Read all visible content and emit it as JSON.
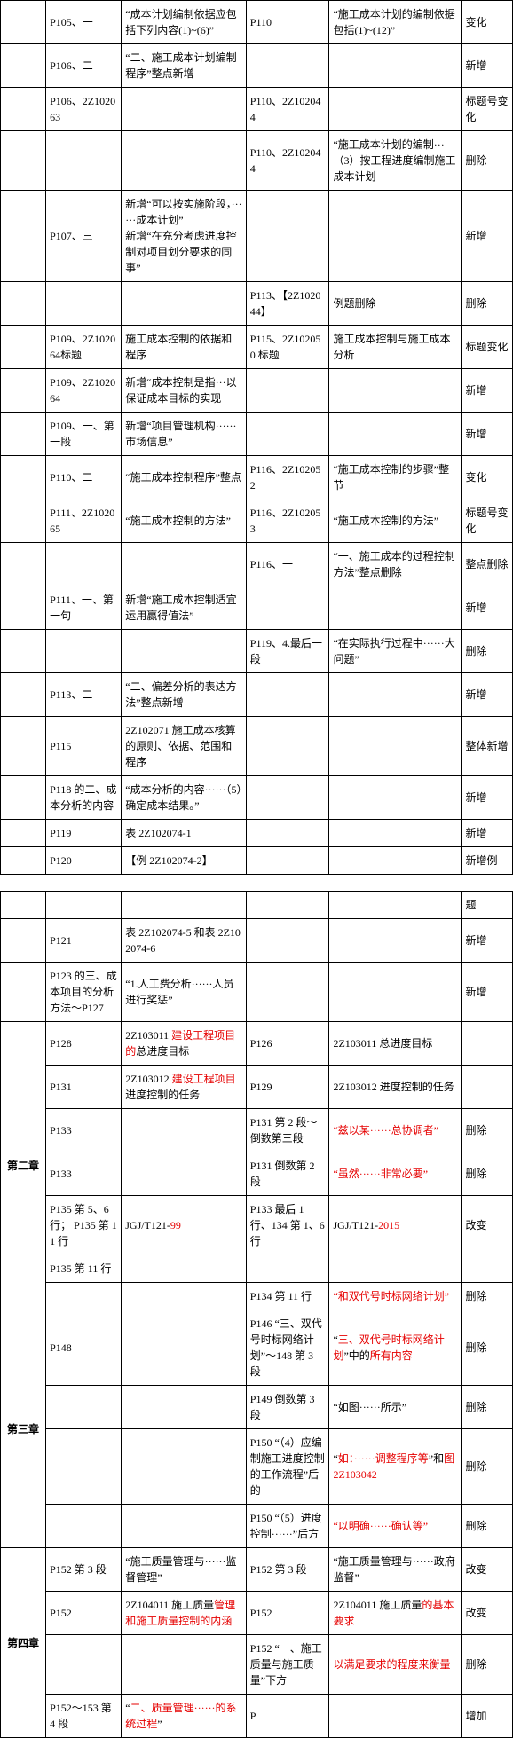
{
  "chapterLabels": {
    "ch2": "第二章",
    "ch3": "第三章",
    "ch4": "第四章"
  },
  "table1": [
    {
      "c0": "",
      "c1": "P105、一",
      "c2": "“成本计划编制依据应包括下列内容(1)~(6)”",
      "c3": "P110",
      "c4": "“施工成本计划的编制依据包括(1)~(12)”",
      "c5": "变化"
    },
    {
      "c0": "",
      "c1": "P106、二",
      "c2": "“二、施工成本计划编制程序”整点新增",
      "c3": "",
      "c4": "",
      "c5": "新增"
    },
    {
      "c0": "",
      "c1": "P106、2Z102063",
      "c2": "",
      "c3": "P110、2Z102044",
      "c4": "",
      "c5": "标题号变化"
    },
    {
      "c0": "",
      "c1": "",
      "c2": "",
      "c3": "P110、2Z102044",
      "c4": "“施工成本计划的编制···（3）按工程进度编制施工成本计划",
      "c5": "删除"
    },
    {
      "c0": "",
      "c1": "P107、三",
      "c2": "新增“可以按实施阶段，······成本计划”\n新增“在充分考虑进度控制对项目划分要求的同事”",
      "c3": "",
      "c4": "",
      "c5": "新增"
    },
    {
      "c0": "",
      "c1": "",
      "c2": "",
      "c3": "P113、【2Z102044】",
      "c4": "例题删除",
      "c5": "删除"
    },
    {
      "c0": "",
      "c1": "P109、2Z102064标题",
      "c2": "施工成本控制的依据和程序",
      "c3": "P115、2Z102050 标题",
      "c4": "施工成本控制与施工成本分析",
      "c5": "标题变化"
    },
    {
      "c0": "",
      "c1": "P109、2Z102064",
      "c2": "新增“成本控制是指···以保证成本目标的实现",
      "c3": "",
      "c4": "",
      "c5": "新增"
    },
    {
      "c0": "",
      "c1": "P109、一、第一段",
      "c2": "新增“项目管理机构······市场信息”",
      "c3": "",
      "c4": "",
      "c5": "新增"
    },
    {
      "c0": "",
      "c1": "P110、二",
      "c2": "“施工成本控制程序”整点",
      "c3": "P116、2Z102052",
      "c4": "“施工成本控制的步骤”整节",
      "c5": "变化"
    },
    {
      "c0": "",
      "c1": "P111、2Z102065",
      "c2": "“施工成本控制的方法”",
      "c3": "P116、2Z102053",
      "c4": "“施工成本控制的方法”",
      "c5": "标题号变化"
    },
    {
      "c0": "",
      "c1": "",
      "c2": "",
      "c3": "P116、一",
      "c4": "“一、施工成本的过程控制方法”整点删除",
      "c5": "整点删除"
    },
    {
      "c0": "",
      "c1": "P111、一、第一句",
      "c2": "新增“施工成本控制适宜运用赢得值法”",
      "c3": "",
      "c4": "",
      "c5": "新增"
    },
    {
      "c0": "",
      "c1": "",
      "c2": "",
      "c3": "P119、4.最后一段",
      "c4": "“在实际执行过程中······大问题”",
      "c5": "删除"
    },
    {
      "c0": "",
      "c1": "P113、二",
      "c2": "“二、偏差分析的表达方法”整点新增",
      "c3": "",
      "c4": "",
      "c5": "新增"
    },
    {
      "c0": "",
      "c1": "P115",
      "c2": "2Z102071 施工成本核算的原则、依据、范围和程序",
      "c3": "",
      "c4": "",
      "c5": "整体新增"
    },
    {
      "c0": "",
      "c1": "P118 的二、成本分析的内容",
      "c2": "“成本分析的内容······（5）确定成本结果。”",
      "c3": "",
      "c4": "",
      "c5": "新增"
    },
    {
      "c0": "",
      "c1": "P119",
      "c2": "表 2Z102074-1",
      "c3": "",
      "c4": "",
      "c5": "新增"
    },
    {
      "c0": "",
      "c1": "P120",
      "c2": "【例 2Z102074-2】",
      "c3": "",
      "c4": "",
      "c5": "新增例"
    }
  ],
  "table2": [
    {
      "c0": "",
      "c1": "",
      "c2": "",
      "c3": "",
      "c4": "",
      "c5": "题"
    },
    {
      "c0": "",
      "c1": "P121",
      "c2": "表 2Z102074-5 和表 2Z102074-6",
      "c3": "",
      "c4": "",
      "c5": "新增"
    },
    {
      "c0": "",
      "c1": "P123 的三、成本项目的分析方法～P127",
      "c2": "“1.人工费分析······人员进行奖惩”",
      "c3": "",
      "c4": "",
      "c5": "新增"
    },
    {
      "c0": "",
      "c1": "P128",
      "c2": [
        "2Z103011 ",
        {
          "t": "建设工程项目的",
          "r": true
        },
        "总进度目标"
      ],
      "c3": "P126",
      "c4": "2Z103011 总进度目标",
      "c5": "",
      "hdr": "ch2"
    },
    {
      "c0": "",
      "c1": "P131",
      "c2": [
        "2Z103012 ",
        {
          "t": "建设工程项目",
          "r": true
        },
        "进度控制的任务"
      ],
      "c3": "P129",
      "c4": "2Z103012 进度控制的任务",
      "c5": ""
    },
    {
      "c0": "",
      "c1": "P133",
      "c2": "",
      "c3": "P131 第 2 段～倒数第三段",
      "c4": [
        {
          "t": "“兹以某······总协调者”",
          "r": true
        }
      ],
      "c5": "删除"
    },
    {
      "c0": "",
      "c1": "P133",
      "c2": "",
      "c3": "P131 倒数第 2 段",
      "c4": [
        {
          "t": "“虽然······非常必要”",
          "r": true
        }
      ],
      "c5": "删除"
    },
    {
      "c0": "",
      "c1": "P135 第 5、6 行； P135 第 11 行",
      "c2": [
        "JGJ/T121-",
        {
          "t": "99",
          "r": true
        }
      ],
      "c3": "P133 最后 1 行、134 第 1、6 行",
      "c4": [
        "JGJ/T121-",
        {
          "t": "2015",
          "r": true
        }
      ],
      "c5": "改变"
    },
    {
      "c0": "",
      "c1": "P135 第 11 行",
      "c2": "",
      "c3": "",
      "c4": "",
      "c5": ""
    },
    {
      "c0": "",
      "c1": "",
      "c2": "",
      "c3": "P134 第 11 行",
      "c4": [
        {
          "t": "“和双代号时标网络计划”",
          "r": true
        }
      ],
      "c5": "删除"
    },
    {
      "c0": "",
      "c1": "P148",
      "c2": "",
      "c3": "P146 “三、双代号时标网络计划”～148 第 3 段",
      "c4": [
        "“",
        {
          "t": "三、双代号时标网络计划",
          "r": true
        },
        "”中的",
        {
          "t": "所有内容",
          "r": true
        }
      ],
      "c5": "删除",
      "hdr": "ch3"
    },
    {
      "c0": "",
      "c1": "",
      "c2": "",
      "c3": "P149 倒数第 3 段",
      "c4": "“如图······所示”",
      "c5": "删除"
    },
    {
      "c0": "",
      "c1": "",
      "c2": "",
      "c3": "P150 “（4）应编制施工进度控制的工作流程”后的",
      "c4": [
        "“",
        {
          "t": "如：······调整程序等",
          "r": true
        },
        "”和",
        {
          "t": "图 2Z103042",
          "r": true
        }
      ],
      "c5": "删除"
    },
    {
      "c0": "",
      "c1": "",
      "c2": "",
      "c3": "P150 “（5）进度控制······”后方",
      "c4": [
        {
          "t": "“以明确······确认等”",
          "r": true
        }
      ],
      "c5": "删除"
    },
    {
      "c0": "",
      "c1": "P152 第 3 段",
      "c2": "“施工质量管理与······监督管理”",
      "c3": "P152 第 3 段",
      "c4": "“施工质量管理与······政府监督”",
      "c5": "改变",
      "hdr": "ch4"
    },
    {
      "c0": "",
      "c1": "P152",
      "c2": [
        "2Z104011 施工质量",
        {
          "t": "管理和施工质量控制的内涵",
          "r": true
        }
      ],
      "c3": "P152",
      "c4": [
        "2Z104011 施工质量",
        {
          "t": "的基本要求",
          "r": true
        }
      ],
      "c5": "改变"
    },
    {
      "c0": "",
      "c1": "",
      "c2": "",
      "c3": "P152 “一、施工质量与施工质量”下方",
      "c4": [
        {
          "t": "以满足要求的程度来衡量",
          "r": true
        }
      ],
      "c5": "删除"
    },
    {
      "c0": "",
      "c1": "P152～153 第 4 段",
      "c2": [
        "“",
        {
          "t": "二、质量管理······的系统过程",
          "r": true
        },
        "”"
      ],
      "c3": "P",
      "c4": "",
      "c5": "增加"
    }
  ]
}
